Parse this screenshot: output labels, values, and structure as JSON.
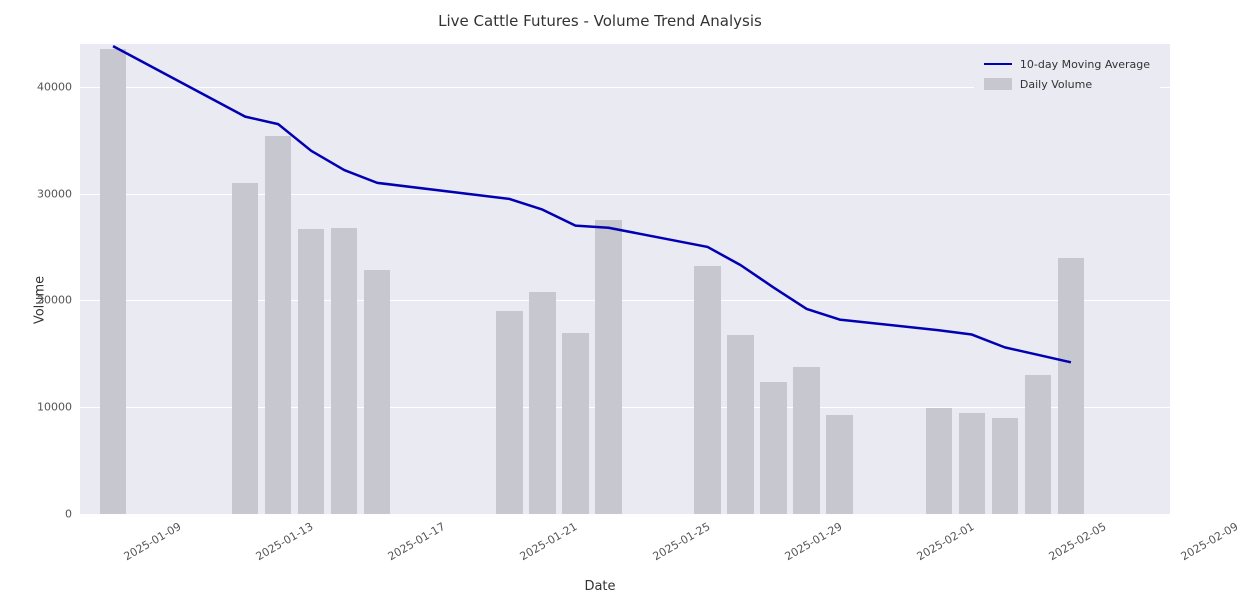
{
  "chart": {
    "type": "bar+line",
    "title": "Live Cattle Futures - Volume Trend Analysis",
    "title_fontsize": 15,
    "xlabel": "Date",
    "ylabel": "Volume",
    "label_fontsize": 13,
    "tick_fontsize": 11,
    "background_color": "#ffffff",
    "plot_bgcolor": "#eaeaf2",
    "grid_color": "#ffffff",
    "xtick_rotation": -30,
    "ylim": [
      0,
      44000
    ],
    "yticks": [
      0,
      10000,
      20000,
      30000,
      40000
    ],
    "xtick_labels": [
      "2025-01-09",
      "2025-01-13",
      "2025-01-17",
      "2025-01-21",
      "2025-01-25",
      "2025-01-29",
      "2025-02-01",
      "2025-02-05",
      "2025-02-09"
    ],
    "xtick_day_index": [
      0,
      4,
      8,
      12,
      16,
      20,
      24,
      28,
      32
    ],
    "x_day_range": [
      -1,
      32
    ],
    "bars": {
      "color": "#c7c7cf",
      "alpha": 1.0,
      "width_days": 0.8,
      "label": "Daily Volume",
      "data": [
        {
          "day_index": 0,
          "value": 43500
        },
        {
          "day_index": 4,
          "value": 31000
        },
        {
          "day_index": 5,
          "value": 35400
        },
        {
          "day_index": 6,
          "value": 26700
        },
        {
          "day_index": 7,
          "value": 26800
        },
        {
          "day_index": 8,
          "value": 22800
        },
        {
          "day_index": 12,
          "value": 19000
        },
        {
          "day_index": 13,
          "value": 20800
        },
        {
          "day_index": 14,
          "value": 16900
        },
        {
          "day_index": 15,
          "value": 27500
        },
        {
          "day_index": 18,
          "value": 23200
        },
        {
          "day_index": 19,
          "value": 16800
        },
        {
          "day_index": 20,
          "value": 12400
        },
        {
          "day_index": 21,
          "value": 13800
        },
        {
          "day_index": 22,
          "value": 9300
        },
        {
          "day_index": 25,
          "value": 9900
        },
        {
          "day_index": 26,
          "value": 9500
        },
        {
          "day_index": 27,
          "value": 9000
        },
        {
          "day_index": 28,
          "value": 13000
        },
        {
          "day_index": 29,
          "value": 24000
        }
      ]
    },
    "line": {
      "color": "#0100b3",
      "width": 2.5,
      "label": "10-day Moving Average",
      "data": [
        {
          "day_index": 0,
          "value": 43800
        },
        {
          "day_index": 4,
          "value": 37200
        },
        {
          "day_index": 5,
          "value": 36500
        },
        {
          "day_index": 6,
          "value": 34000
        },
        {
          "day_index": 7,
          "value": 32200
        },
        {
          "day_index": 8,
          "value": 31000
        },
        {
          "day_index": 12,
          "value": 29500
        },
        {
          "day_index": 13,
          "value": 28500
        },
        {
          "day_index": 14,
          "value": 27000
        },
        {
          "day_index": 15,
          "value": 26800
        },
        {
          "day_index": 18,
          "value": 25000
        },
        {
          "day_index": 19,
          "value": 23300
        },
        {
          "day_index": 20,
          "value": 21200
        },
        {
          "day_index": 21,
          "value": 19200
        },
        {
          "day_index": 22,
          "value": 18200
        },
        {
          "day_index": 25,
          "value": 17200
        },
        {
          "day_index": 26,
          "value": 16800
        },
        {
          "day_index": 27,
          "value": 15600
        },
        {
          "day_index": 28,
          "value": 14900
        },
        {
          "day_index": 29,
          "value": 14200
        }
      ]
    },
    "legend": {
      "position": "upper-right",
      "items": [
        {
          "type": "line",
          "label": "10-day Moving Average"
        },
        {
          "type": "patch",
          "label": "Daily Volume"
        }
      ]
    }
  }
}
